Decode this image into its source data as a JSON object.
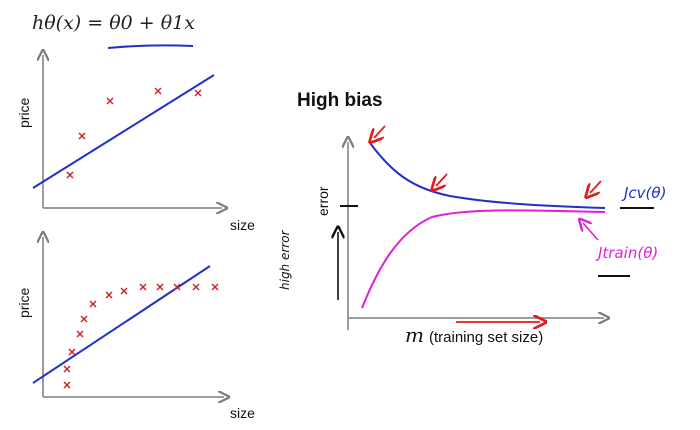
{
  "formula": {
    "lhs": "hθ(x) = θ0 + θ1x",
    "hypothesis": "hθ(x)",
    "equals": " = ",
    "theta0": "θ0",
    "plus": " + ",
    "theta1x": "θ1x"
  },
  "top_plot": {
    "ylabel": "price",
    "xlabel": "size"
  },
  "bottom_plot": {
    "ylabel": "price",
    "xlabel": "size"
  },
  "learning_curve": {
    "title": "High bias",
    "ylabel": "error",
    "xlabel_symbol": "m",
    "xlabel_text": "(training set size)",
    "cv_label": "Jcv(θ)",
    "train_label": "Jtrain(θ)",
    "handwritten_note": "high error"
  },
  "colors": {
    "line": "#2230c8",
    "points": "#d22020",
    "train": "#e020d8",
    "annot": "#e21c1c",
    "axis": "#808080"
  },
  "icons": [
    "arrow-icon"
  ]
}
